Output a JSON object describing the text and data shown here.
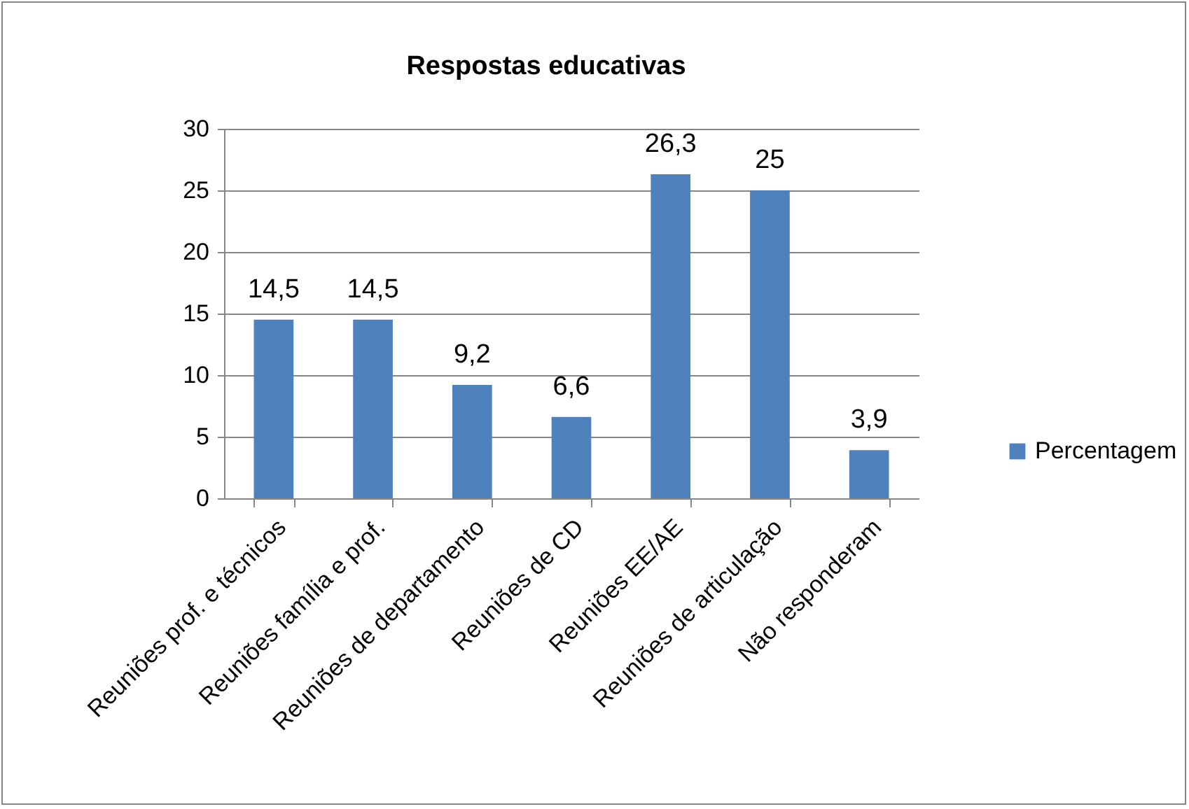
{
  "chart_data": {
    "type": "bar",
    "title": "Respostas educativas",
    "categories": [
      "Reuniões prof. e técnicos",
      "Reuniões família e prof.",
      "Reuniões de departamento",
      "Reuniões de CD",
      "Reuniões EE/AE",
      "Reuniões de articulação",
      "Não responderam"
    ],
    "series": [
      {
        "name": "Percentagem",
        "color": "#4f81bd",
        "values": [
          14.5,
          14.5,
          9.2,
          6.6,
          26.3,
          25,
          3.9
        ],
        "value_labels": [
          "14,5",
          "14,5",
          "9,2",
          "6,6",
          "26,3",
          "25",
          "3,9"
        ]
      }
    ],
    "ylim": [
      0,
      30
    ],
    "yticks": [
      0,
      5,
      10,
      15,
      20,
      25,
      30
    ],
    "grid": "y",
    "legend": "right"
  }
}
